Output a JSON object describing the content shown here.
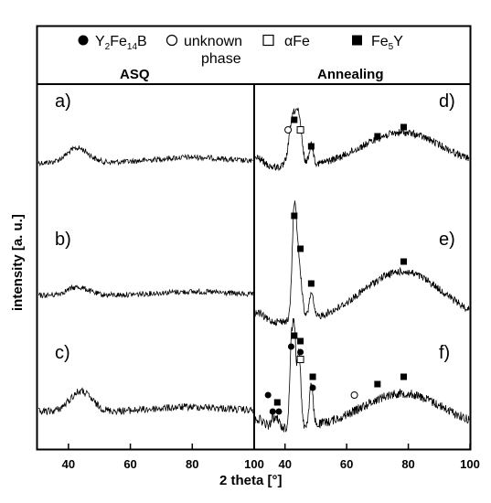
{
  "chart_data": {
    "type": "line",
    "xlabel": "2 theta [°]",
    "ylabel": "intensity [a. u.]",
    "grid": false,
    "legend": {
      "placement": "top",
      "entries": [
        {
          "marker": "filled-circle",
          "label": "Y₂Fe₁₄B"
        },
        {
          "marker": "open-circle",
          "label": "unknown phase"
        },
        {
          "marker": "open-square",
          "label": "αFe"
        },
        {
          "marker": "filled-square",
          "label": "Fe₅Y"
        }
      ]
    },
    "headers": {
      "left": "ASQ",
      "right": "Annealing"
    },
    "left_panel": {
      "xlim": [
        30,
        100
      ],
      "ticks": [
        40,
        60,
        80,
        100
      ],
      "traces": [
        {
          "label": "a)",
          "baseline": 178,
          "hump_center": 43,
          "hump_height": 16,
          "bg_hump_center": 80,
          "bg_hump_height": 6,
          "noise": 3
        },
        {
          "label": "b)",
          "baseline": 323,
          "hump_center": 43,
          "hump_height": 9,
          "bg_hump_center": 80,
          "bg_hump_height": 4,
          "noise": 3
        },
        {
          "label": "c)",
          "baseline": 450,
          "hump_center": 44,
          "hump_height": 22,
          "bg_hump_center": 80,
          "bg_hump_height": 5,
          "noise": 4
        }
      ]
    },
    "right_panel": {
      "xlim": [
        30,
        100
      ],
      "ticks": [
        40,
        60,
        80,
        100
      ],
      "traces": [
        {
          "label": "d)",
          "baseline": 183,
          "peaks": [
            [
              42.5,
              50,
              1.2
            ],
            [
              44.5,
              44,
              1.0
            ],
            [
              48.5,
              22,
              0.7
            ]
          ],
          "broad_center": 78,
          "broad_height": 38,
          "broad_width": 13,
          "noise": 4,
          "markers": [
            {
              "type": "filled-square",
              "x": 43.0,
              "dy": -52
            },
            {
              "type": "open-circle",
              "x": 41.0,
              "dy": -41
            },
            {
              "type": "open-square",
              "x": 45.0,
              "dy": -41
            },
            {
              "type": "filled-square",
              "x": 48.5,
              "dy": -23
            },
            {
              "type": "filled-square",
              "x": 70.0,
              "dy": -34
            },
            {
              "type": "filled-square",
              "x": 78.5,
              "dy": -44
            }
          ]
        },
        {
          "label": "e)",
          "baseline": 352,
          "peaks": [
            [
              43.0,
              115,
              0.7
            ],
            [
              44.5,
              60,
              0.9
            ],
            [
              48.5,
              28,
              0.7
            ]
          ],
          "broad_center": 78,
          "broad_height": 55,
          "broad_width": 13,
          "noise": 4,
          "markers": [
            {
              "type": "filled-square",
              "x": 43.0,
              "dy": -116
            },
            {
              "type": "filled-square",
              "x": 45.0,
              "dy": -80
            },
            {
              "type": "filled-square",
              "x": 48.5,
              "dy": -42
            },
            {
              "type": "filled-square",
              "x": 78.5,
              "dy": -66
            }
          ]
        },
        {
          "label": "f)",
          "baseline": 468,
          "peaks": [
            [
              42.0,
              85,
              0.5
            ],
            [
              43.0,
              100,
              0.5
            ],
            [
              44.5,
              85,
              0.6
            ],
            [
              48.5,
              45,
              0.6
            ],
            [
              36.0,
              10,
              0.6
            ],
            [
              37.5,
              10,
              0.6
            ]
          ],
          "broad_center": 78,
          "broad_height": 38,
          "broad_width": 13,
          "noise": 5,
          "markers": [
            {
              "type": "filled-square",
              "x": 43.0,
              "dy": -101
            },
            {
              "type": "filled-circle",
              "x": 42.0,
              "dy": -89
            },
            {
              "type": "filled-square",
              "x": 45.0,
              "dy": -95
            },
            {
              "type": "filled-circle",
              "x": 45.0,
              "dy": -83
            },
            {
              "type": "open-square",
              "x": 45.0,
              "dy": -75
            },
            {
              "type": "filled-square",
              "x": 49.0,
              "dy": -56
            },
            {
              "type": "filled-circle",
              "x": 49.0,
              "dy": -44
            },
            {
              "type": "filled-circle",
              "x": 34.5,
              "dy": -36
            },
            {
              "type": "filled-square",
              "x": 37.5,
              "dy": -28
            },
            {
              "type": "filled-circle",
              "x": 36.0,
              "dy": -18
            },
            {
              "type": "filled-circle",
              "x": 38.0,
              "dy": -18
            },
            {
              "type": "open-circle",
              "x": 62.5,
              "dy": -36
            },
            {
              "type": "filled-square",
              "x": 70.0,
              "dy": -48
            },
            {
              "type": "filled-square",
              "x": 78.5,
              "dy": -56
            }
          ]
        }
      ]
    }
  }
}
